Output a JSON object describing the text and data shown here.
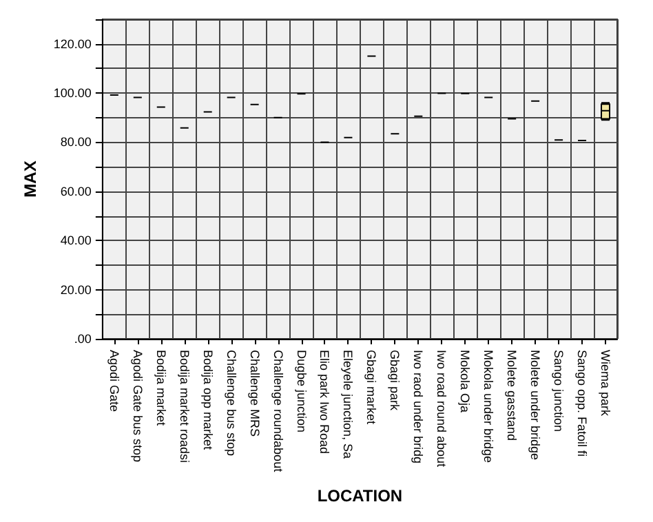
{
  "chart_data": {
    "type": "box",
    "xlabel": "LOCATION",
    "ylabel": "MAX",
    "categories": [
      "Agodi Gate",
      "Agodi Gate bus stop",
      "Bodija market",
      "Bodija market roadsi",
      "Bodija opp market",
      "Challenge bus stop",
      "Challenge MRS",
      "Challenge roundabout",
      "Dugbe junction",
      "Elio park Iwo Road",
      "Eleyele junction, Sa",
      "Gbagi market",
      "Gbagi park",
      "Iwo raod under bridg",
      "Iwo road round about",
      "Mokola Oja",
      "Mokola under bridge",
      "Molete gasstand",
      "Molete under bridge",
      "Sango junction",
      "Sango opp. Fatoil fi",
      "Wiema park"
    ],
    "boxes": [
      {
        "low": 99.2,
        "q1": 99.2,
        "median": 99.2,
        "q3": 99.2,
        "high": 99.2
      },
      {
        "low": 98.2,
        "q1": 98.2,
        "median": 98.2,
        "q3": 98.2,
        "high": 98.2
      },
      {
        "low": 94.3,
        "q1": 94.3,
        "median": 94.3,
        "q3": 94.3,
        "high": 94.3
      },
      {
        "low": 85.8,
        "q1": 85.8,
        "median": 85.8,
        "q3": 85.8,
        "high": 85.8
      },
      {
        "low": 92.3,
        "q1": 92.3,
        "median": 92.3,
        "q3": 92.3,
        "high": 92.3
      },
      {
        "low": 98.2,
        "q1": 98.2,
        "median": 98.2,
        "q3": 98.2,
        "high": 98.2
      },
      {
        "low": 95.3,
        "q1": 95.3,
        "median": 95.3,
        "q3": 95.3,
        "high": 95.3
      },
      {
        "low": 90,
        "q1": 90,
        "median": 90,
        "q3": 90,
        "high": 90
      },
      {
        "low": 99.7,
        "q1": 99.7,
        "median": 99.7,
        "q3": 99.7,
        "high": 99.7
      },
      {
        "low": 80,
        "q1": 80,
        "median": 80,
        "q3": 80,
        "high": 80
      },
      {
        "low": 81.9,
        "q1": 81.9,
        "median": 81.9,
        "q3": 81.9,
        "high": 81.9
      },
      {
        "low": 115,
        "q1": 115,
        "median": 115,
        "q3": 115,
        "high": 115
      },
      {
        "low": 83.4,
        "q1": 83.4,
        "median": 83.4,
        "q3": 83.4,
        "high": 83.4
      },
      {
        "low": 90.6,
        "q1": 90.6,
        "median": 90.6,
        "q3": 90.6,
        "high": 90.6
      },
      {
        "low": 99.9,
        "q1": 99.9,
        "median": 99.9,
        "q3": 99.9,
        "high": 99.9
      },
      {
        "low": 99.8,
        "q1": 99.8,
        "median": 99.8,
        "q3": 99.8,
        "high": 99.8
      },
      {
        "low": 98.2,
        "q1": 98.2,
        "median": 98.2,
        "q3": 98.2,
        "high": 98.2
      },
      {
        "low": 89.5,
        "q1": 89.5,
        "median": 89.5,
        "q3": 89.5,
        "high": 89.5
      },
      {
        "low": 96.7,
        "q1": 96.7,
        "median": 96.7,
        "q3": 96.7,
        "high": 96.7
      },
      {
        "low": 80.9,
        "q1": 80.9,
        "median": 80.9,
        "q3": 80.9,
        "high": 80.9
      },
      {
        "low": 80.7,
        "q1": 80.7,
        "median": 80.7,
        "q3": 80.7,
        "high": 80.7
      },
      {
        "low": 89,
        "q1": 89.5,
        "median": 92.8,
        "q3": 95.5,
        "high": 96
      }
    ],
    "colors": [
      "#000000",
      "#000000",
      "#000000",
      "#000000",
      "#000000",
      "#000000",
      "#000000",
      "#000000",
      "#000000",
      "#000000",
      "#000000",
      "#000000",
      "#000000",
      "#000000",
      "#000000",
      "#000000",
      "#000000",
      "#000000",
      "#000000",
      "#000000",
      "#000000",
      "#f0e6a0"
    ],
    "ylim": [
      0,
      130
    ],
    "yticks": [
      {
        "value": 0,
        "label": ".00"
      },
      {
        "value": 10,
        "label": null
      },
      {
        "value": 20,
        "label": "20.00"
      },
      {
        "value": 30,
        "label": null
      },
      {
        "value": 40,
        "label": "40.00"
      },
      {
        "value": 50,
        "label": null
      },
      {
        "value": 60,
        "label": "60.00"
      },
      {
        "value": 70,
        "label": null
      },
      {
        "value": 80,
        "label": "80.00"
      },
      {
        "value": 90,
        "label": null
      },
      {
        "value": 100,
        "label": "100.00"
      },
      {
        "value": 110,
        "label": null
      },
      {
        "value": 120,
        "label": "120.00"
      },
      {
        "value": 130,
        "label": null
      }
    ],
    "grid": true
  }
}
